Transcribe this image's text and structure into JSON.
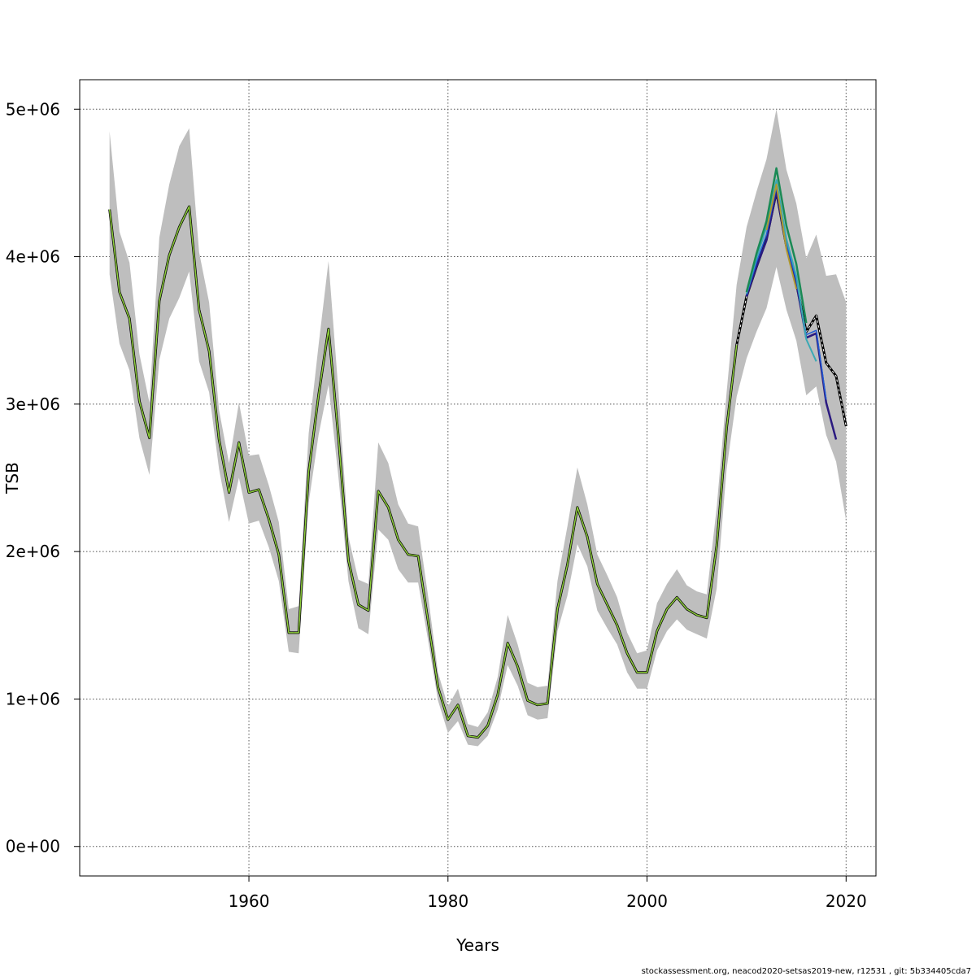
{
  "chart_data": {
    "type": "line",
    "xlabel": "Years",
    "ylabel": "TSB",
    "xlim": [
      1943,
      2023
    ],
    "ylim": [
      -200000,
      5200000
    ],
    "x_ticks": [
      1960,
      1980,
      2000,
      2020
    ],
    "y_ticks": [
      0,
      1000000,
      2000000,
      3000000,
      4000000,
      5000000
    ],
    "y_tick_labels": [
      "0e+00",
      "1e+06",
      "2e+06",
      "3e+06",
      "4e+06",
      "5e+06"
    ],
    "grid": true,
    "band_color": "#bebebe",
    "confidence_band": {
      "x": [
        1946,
        1947,
        1948,
        1949,
        1950,
        1951,
        1952,
        1953,
        1954,
        1955,
        1956,
        1957,
        1958,
        1959,
        1960,
        1961,
        1962,
        1963,
        1964,
        1965,
        1966,
        1967,
        1968,
        1969,
        1970,
        1971,
        1972,
        1973,
        1974,
        1975,
        1976,
        1977,
        1978,
        1979,
        1980,
        1981,
        1982,
        1983,
        1984,
        1985,
        1986,
        1987,
        1988,
        1989,
        1990,
        1991,
        1992,
        1993,
        1994,
        1995,
        1996,
        1997,
        1998,
        1999,
        2000,
        2001,
        2002,
        2003,
        2004,
        2005,
        2006,
        2007,
        2008,
        2009,
        2010,
        2011,
        2012,
        2013,
        2014,
        2015,
        2016,
        2017,
        2018,
        2019,
        2020
      ],
      "upper": [
        4850000,
        4170000,
        3960000,
        3340000,
        3010000,
        4130000,
        4490000,
        4750000,
        4870000,
        4030000,
        3690000,
        2960000,
        2600000,
        3010000,
        2650000,
        2660000,
        2450000,
        2200000,
        1610000,
        1630000,
        2800000,
        3400000,
        3970000,
        3080000,
        2100000,
        1810000,
        1780000,
        2740000,
        2600000,
        2320000,
        2190000,
        2170000,
        1700000,
        1180000,
        950000,
        1070000,
        830000,
        810000,
        910000,
        1150000,
        1570000,
        1370000,
        1110000,
        1080000,
        1090000,
        1800000,
        2170000,
        2570000,
        2320000,
        1980000,
        1840000,
        1690000,
        1450000,
        1310000,
        1330000,
        1650000,
        1780000,
        1880000,
        1770000,
        1730000,
        1710000,
        2300000,
        3080000,
        3810000,
        4200000,
        4440000,
        4660000,
        5000000,
        4590000,
        4360000,
        3990000,
        4150000,
        3870000,
        3880000,
        3690000
      ],
      "lower": [
        3880000,
        3410000,
        3230000,
        2770000,
        2520000,
        3300000,
        3580000,
        3720000,
        3900000,
        3290000,
        3080000,
        2560000,
        2200000,
        2500000,
        2190000,
        2210000,
        2030000,
        1800000,
        1320000,
        1310000,
        2330000,
        2790000,
        3130000,
        2500000,
        1800000,
        1480000,
        1440000,
        2150000,
        2080000,
        1880000,
        1790000,
        1790000,
        1400000,
        990000,
        770000,
        850000,
        690000,
        680000,
        750000,
        930000,
        1230000,
        1090000,
        890000,
        860000,
        870000,
        1460000,
        1700000,
        2050000,
        1900000,
        1600000,
        1480000,
        1370000,
        1180000,
        1070000,
        1070000,
        1330000,
        1460000,
        1540000,
        1470000,
        1440000,
        1410000,
        1750000,
        2560000,
        3050000,
        3310000,
        3490000,
        3650000,
        3930000,
        3640000,
        3430000,
        3060000,
        3120000,
        2790000,
        2610000,
        2210000
      ]
    },
    "series": [
      {
        "color": "#000000",
        "dashed": true,
        "width": 3,
        "x": [
          1946,
          1947,
          1948,
          1949,
          1950,
          1951,
          1952,
          1953,
          1954,
          1955,
          1956,
          1957,
          1958,
          1959,
          1960,
          1961,
          1962,
          1963,
          1964,
          1965,
          1966,
          1967,
          1968,
          1969,
          1970,
          1971,
          1972,
          1973,
          1974,
          1975,
          1976,
          1977,
          1978,
          1979,
          1980,
          1981,
          1982,
          1983,
          1984,
          1985,
          1986,
          1987,
          1988,
          1989,
          1990,
          1991,
          1992,
          1993,
          1994,
          1995,
          1996,
          1997,
          1998,
          1999,
          2000,
          2001,
          2002,
          2003,
          2004,
          2005,
          2006,
          2007,
          2008,
          2009,
          2010,
          2011,
          2012,
          2013,
          2014,
          2015,
          2016,
          2017,
          2018,
          2019,
          2020
        ],
        "values": [
          4320000,
          3760000,
          3580000,
          3020000,
          2770000,
          3700000,
          4010000,
          4200000,
          4340000,
          3640000,
          3360000,
          2760000,
          2400000,
          2740000,
          2400000,
          2420000,
          2220000,
          1980000,
          1450000,
          1450000,
          2540000,
          3060000,
          3510000,
          2770000,
          1940000,
          1640000,
          1600000,
          2410000,
          2300000,
          2080000,
          1980000,
          1970000,
          1530000,
          1080000,
          860000,
          960000,
          750000,
          740000,
          820000,
          1030000,
          1380000,
          1220000,
          990000,
          960000,
          970000,
          1610000,
          1910000,
          2300000,
          2100000,
          1780000,
          1640000,
          1500000,
          1310000,
          1180000,
          1180000,
          1460000,
          1610000,
          1690000,
          1610000,
          1570000,
          1550000,
          2040000,
          2840000,
          3400000,
          3730000,
          3930000,
          4120000,
          4440000,
          4070000,
          3820000,
          3490000,
          3600000,
          3280000,
          3190000,
          2850000
        ]
      },
      {
        "color": "#2b1a80",
        "dashed": false,
        "width": 2.5,
        "x": [
          2010,
          2011,
          2012,
          2013,
          2014,
          2015,
          2016,
          2017,
          2018,
          2019
        ],
        "values": [
          3730000,
          3930000,
          4110000,
          4440000,
          4070000,
          3820000,
          3450000,
          3480000,
          3010000,
          2760000
        ]
      },
      {
        "color": "#1f5bd6",
        "dashed": false,
        "width": 1.5,
        "x": [
          2010,
          2011,
          2012,
          2013,
          2014,
          2015,
          2016,
          2017,
          2018
        ],
        "values": [
          3740000,
          3960000,
          4150000,
          4470000,
          4090000,
          3840000,
          3470000,
          3500000,
          3030000
        ]
      },
      {
        "color": "#3aa9b5",
        "dashed": false,
        "width": 2,
        "x": [
          2010,
          2011,
          2012,
          2013,
          2014,
          2015,
          2016,
          2017
        ],
        "values": [
          3750000,
          3990000,
          4200000,
          4520000,
          4120000,
          3870000,
          3440000,
          3290000
        ]
      },
      {
        "color": "#1a8a55",
        "dashed": false,
        "width": 2.5,
        "x": [
          2010,
          2011,
          2012,
          2013,
          2014,
          2015,
          2016
        ],
        "values": [
          3760000,
          4020000,
          4240000,
          4600000,
          4210000,
          3950000,
          3550000
        ]
      },
      {
        "color": "#b09a30",
        "dashed": false,
        "width": 2,
        "x": [
          2012,
          2013,
          2014,
          2015
        ],
        "values": [
          4180000,
          4490000,
          4050000,
          3780000
        ]
      },
      {
        "color": "#8ccc3a",
        "dashed": false,
        "width": 1.5,
        "x": [
          1946,
          1947,
          1948,
          1949,
          1950,
          1951,
          1952,
          1953,
          1954,
          1955,
          1956,
          1957,
          1958,
          1959,
          1960,
          1961,
          1962,
          1963,
          1964,
          1965,
          1966,
          1967,
          1968,
          1969,
          1970,
          1971,
          1972,
          1973,
          1974,
          1975,
          1976,
          1977,
          1978,
          1979,
          1980,
          1981,
          1982,
          1983,
          1984,
          1985,
          1986,
          1987,
          1988,
          1989,
          1990,
          1991,
          1992,
          1993,
          1994,
          1995,
          1996,
          1997,
          1998,
          1999,
          2000,
          2001,
          2002,
          2003,
          2004,
          2005,
          2006,
          2007,
          2008,
          2009
        ],
        "values": [
          4320000,
          3760000,
          3580000,
          3020000,
          2770000,
          3700000,
          4010000,
          4200000,
          4340000,
          3640000,
          3360000,
          2760000,
          2400000,
          2740000,
          2400000,
          2420000,
          2220000,
          1980000,
          1450000,
          1450000,
          2540000,
          3060000,
          3510000,
          2770000,
          1940000,
          1640000,
          1600000,
          2410000,
          2300000,
          2080000,
          1980000,
          1970000,
          1530000,
          1080000,
          860000,
          960000,
          750000,
          740000,
          820000,
          1030000,
          1380000,
          1220000,
          990000,
          960000,
          970000,
          1610000,
          1910000,
          2300000,
          2100000,
          1780000,
          1640000,
          1500000,
          1310000,
          1180000,
          1180000,
          1460000,
          1610000,
          1690000,
          1610000,
          1570000,
          1550000,
          2040000,
          2840000,
          3400000
        ]
      }
    ],
    "footer": "stockassessment.org, neacod2020-setsas2019-new, r12531 , git: 5b334405cda7"
  }
}
